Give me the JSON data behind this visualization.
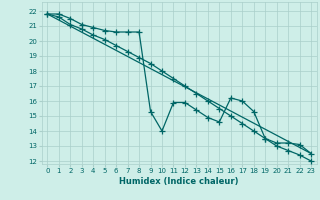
{
  "xlabel": "Humidex (Indice chaleur)",
  "bg_color": "#ceeee8",
  "grid_color": "#aacfca",
  "line_color": "#006666",
  "xlim": [
    -0.5,
    23.5
  ],
  "ylim": [
    11.8,
    22.6
  ],
  "yticks": [
    12,
    13,
    14,
    15,
    16,
    17,
    18,
    19,
    20,
    21,
    22
  ],
  "xticks": [
    0,
    1,
    2,
    3,
    4,
    5,
    6,
    7,
    8,
    9,
    10,
    11,
    12,
    13,
    14,
    15,
    16,
    17,
    18,
    19,
    20,
    21,
    22,
    23
  ],
  "line1_x": [
    0,
    1,
    2,
    3,
    4,
    5,
    6,
    7,
    8,
    9,
    10,
    11,
    12,
    13,
    14,
    15,
    16,
    17,
    18,
    19,
    20,
    21,
    22,
    23
  ],
  "line1_y": [
    21.8,
    21.8,
    21.5,
    21.1,
    20.9,
    20.7,
    20.6,
    20.6,
    20.6,
    15.3,
    14.0,
    15.9,
    15.9,
    15.4,
    14.9,
    14.6,
    16.2,
    16.0,
    15.3,
    13.5,
    13.2,
    13.2,
    13.1,
    12.5
  ],
  "line2_x": [
    0,
    23
  ],
  "line2_y": [
    21.8,
    12.5
  ],
  "line3_x": [
    0,
    1,
    2,
    3,
    4,
    5,
    6,
    7,
    8,
    9,
    10,
    11,
    12,
    13,
    14,
    15,
    16,
    17,
    18,
    19,
    20,
    21,
    22,
    23
  ],
  "line3_y": [
    21.8,
    21.6,
    21.1,
    20.8,
    20.4,
    20.1,
    19.7,
    19.3,
    18.9,
    18.5,
    18.0,
    17.5,
    17.0,
    16.5,
    16.0,
    15.5,
    15.0,
    14.5,
    14.0,
    13.5,
    13.0,
    12.7,
    12.4,
    12.0
  ]
}
